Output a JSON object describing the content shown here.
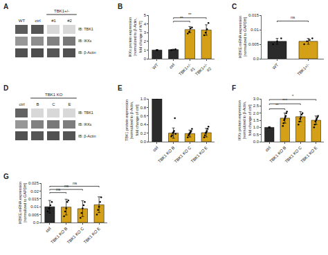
{
  "chart_data": [
    {
      "type": "heatmap",
      "title": "A",
      "categories": [
        "WT",
        "ctrl",
        "#1",
        "#2"
      ],
      "row_labels": [
        "IB: TBK1",
        "IB: IKKε",
        "IB: β-Actin"
      ],
      "cells": [
        [
          0.75,
          0.78,
          0.18,
          0.18
        ],
        [
          0.48,
          0.52,
          0.58,
          0.62
        ],
        [
          0.8,
          0.82,
          0.78,
          0.8
        ]
      ],
      "zlim": [
        0,
        1
      ],
      "annotations": [
        {
          "text": "TBK1+/-",
          "from": "#1",
          "to": "#2"
        }
      ]
    },
    {
      "type": "bar",
      "title": "B",
      "categories": [
        "WT",
        "ctrl",
        "TBK1+/-\n#1",
        "TBK1+/-\n#2"
      ],
      "values": [
        1.0,
        1.05,
        3.35,
        3.3
      ],
      "errors": [
        0.05,
        0.05,
        0.35,
        0.6
      ],
      "colors": [
        "#2b2b2b",
        "#2b2b2b",
        "#d4a017",
        "#d4a017"
      ],
      "dots": [
        [
          1.0
        ],
        [
          1.0,
          1.1
        ],
        [
          2.9,
          3.1,
          3.5,
          3.6
        ],
        [
          2.7,
          3.0,
          3.4,
          4.1
        ]
      ],
      "ylabel": "IKKε protein expression\n[normalized to β-Actin,\nfold change of WT]",
      "ylim": [
        0,
        5
      ],
      "yticks": [
        0,
        1,
        2,
        3,
        4,
        5
      ],
      "grid": false,
      "annotations": [
        {
          "x1": 1,
          "x2": 2,
          "y": 4.3,
          "text": "**"
        },
        {
          "x1": 1,
          "x2": 3,
          "y": 4.7,
          "text": "**"
        }
      ]
    },
    {
      "type": "bar",
      "title": "C",
      "categories": [
        "WT",
        "TBK1+/-"
      ],
      "values": [
        0.006,
        0.006
      ],
      "errors": [
        0.001,
        0.001
      ],
      "colors": [
        "#2b2b2b",
        "#d4a017"
      ],
      "dots": [
        [
          0.005,
          0.006,
          0.007
        ],
        [
          0.005,
          0.006,
          0.0065,
          0.007
        ]
      ],
      "ylabel": "IKBKE mRNA expression\n[normalized to GAPDH]",
      "ylim": [
        0,
        0.015
      ],
      "yticks": [
        {
          "value": 0,
          "label": "0.0"
        },
        0.005,
        0.01,
        0.015
      ],
      "grid": false,
      "annotations": [
        {
          "x1": 0,
          "x2": 1,
          "y": 0.013,
          "text": "ns"
        }
      ]
    },
    {
      "type": "heatmap",
      "title": "D",
      "categories": [
        "ctrl",
        "B",
        "C",
        "E"
      ],
      "row_labels": [
        "IB: TBK1",
        "IB: IKKε",
        "IB: β-Actin"
      ],
      "cells": [
        [
          0.72,
          0.18,
          0.18,
          0.18
        ],
        [
          0.48,
          0.58,
          0.62,
          0.6
        ],
        [
          0.8,
          0.78,
          0.8,
          0.79
        ]
      ],
      "zlim": [
        0,
        1
      ],
      "annotations": [
        {
          "text": "TBK1 KO",
          "from": "B",
          "to": "E"
        }
      ]
    },
    {
      "type": "bar",
      "title": "E",
      "categories": [
        "ctrl",
        "TBK1 KO B",
        "TBK1 KO C",
        "TBK1 KO E"
      ],
      "values": [
        1.0,
        0.2,
        0.19,
        0.21
      ],
      "errors": [
        0.0,
        0.12,
        0.08,
        0.1
      ],
      "colors": [
        "#2b2b2b",
        "#d4a017",
        "#d4a017",
        "#d4a017"
      ],
      "dots": [
        [],
        [
          0.12,
          0.15,
          0.2,
          0.22,
          0.25,
          0.55,
          0.18
        ],
        [
          0.1,
          0.15,
          0.18,
          0.2,
          0.22,
          0.25,
          0.3
        ],
        [
          0.1,
          0.15,
          0.2,
          0.22,
          0.25,
          0.3,
          0.35
        ]
      ],
      "ylabel": "TBK1 protein expression\n[normalized to β-Actin,\nfold change of ctrl]",
      "ylim": [
        0,
        1.0
      ],
      "yticks": [
        {
          "value": 0,
          "label": "0.0"
        },
        0.2,
        0.4,
        0.6,
        0.8,
        {
          "value": 1,
          "label": "1.0"
        }
      ],
      "grid": false
    },
    {
      "type": "bar",
      "title": "F",
      "categories": [
        "ctrl",
        "TBK1 KO B",
        "TBK1 KO C",
        "TBK1 KO E"
      ],
      "values": [
        1.0,
        1.65,
        1.75,
        1.5
      ],
      "errors": [
        0.05,
        0.35,
        0.35,
        0.3
      ],
      "colors": [
        "#2b2b2b",
        "#d4a017",
        "#d4a017",
        "#d4a017"
      ],
      "dots": [
        [
          1.0
        ],
        [
          1.1,
          1.3,
          1.5,
          1.6,
          1.7,
          1.8,
          2.0,
          2.1
        ],
        [
          1.2,
          1.4,
          1.6,
          1.7,
          1.9,
          2.0
        ],
        [
          1.0,
          1.2,
          1.4,
          1.5,
          1.6,
          1.7,
          1.8
        ]
      ],
      "ylabel": "IKKε protein expression\n[normalized to β-Actin,\nfold change of ctrl]",
      "ylim": [
        0,
        3.0
      ],
      "yticks": [
        {
          "value": 0,
          "label": "0.0"
        },
        0.5,
        {
          "value": 1,
          "label": "1.0"
        },
        1.5,
        {
          "value": 2,
          "label": "2.0"
        },
        2.5,
        {
          "value": 3,
          "label": "3.0"
        }
      ],
      "grid": false,
      "annotations": [
        {
          "x1": 0,
          "x2": 1,
          "y": 2.3,
          "text": "**"
        },
        {
          "x1": 0,
          "x2": 2,
          "y": 2.65,
          "text": "***"
        },
        {
          "x1": 0,
          "x2": 3,
          "y": 2.95,
          "text": "*"
        }
      ]
    },
    {
      "type": "bar",
      "title": "G",
      "categories": [
        "ctrl",
        "TBK1 KO B",
        "TBK1 KO C",
        "TBK1 KO E"
      ],
      "values": [
        0.01,
        0.0098,
        0.0088,
        0.0113
      ],
      "errors": [
        0.004,
        0.005,
        0.005,
        0.005
      ],
      "colors": [
        "#2b2b2b",
        "#d4a017",
        "#d4a017",
        "#d4a017"
      ],
      "dots": [
        [
          0.007,
          0.009,
          0.011,
          0.013
        ],
        [
          0.004,
          0.007,
          0.009,
          0.013,
          0.014
        ],
        [
          0.003,
          0.006,
          0.009,
          0.011,
          0.013
        ],
        [
          0.005,
          0.008,
          0.01,
          0.013,
          0.016
        ]
      ],
      "ylabel": "IKBKE mRNA expression\n[normalized to GAPDH]",
      "ylim": [
        0,
        0.025
      ],
      "yticks": [
        {
          "value": 0,
          "label": "0.0"
        },
        0.005,
        0.01,
        0.015,
        0.02,
        0.025
      ],
      "grid": false,
      "annotations": [
        {
          "x1": 0,
          "x2": 1,
          "y": 0.019,
          "text": "ns"
        },
        {
          "x1": 0,
          "x2": 2,
          "y": 0.021,
          "text": "ns"
        },
        {
          "x1": 0,
          "x2": 3,
          "y": 0.023,
          "text": "ns"
        }
      ]
    }
  ]
}
